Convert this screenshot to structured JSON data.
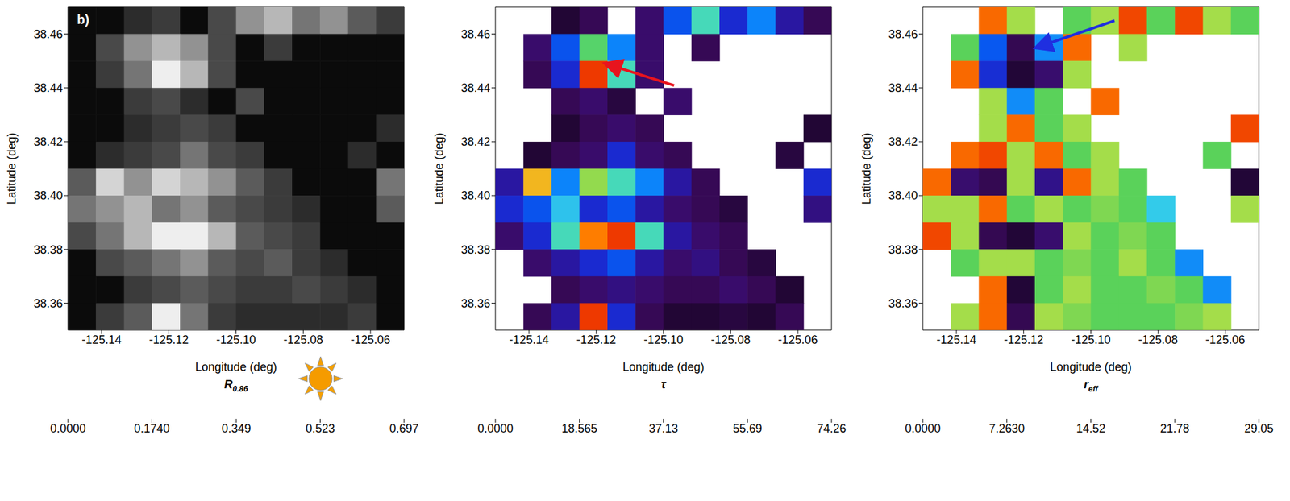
{
  "chart_data": [
    {
      "type": "heatmap",
      "panel_label": "b)",
      "x_label": "Longitude (deg)",
      "y_label": "Latitude (deg)",
      "color": "gray",
      "xlim": [
        -125.15,
        -125.05
      ],
      "xticks": [
        -125.14,
        -125.12,
        {
          "value": -125.1,
          "label": "-125.10"
        },
        -125.08,
        -125.06
      ],
      "ylim": [
        38.35,
        38.47
      ],
      "yticks": [
        38.36,
        38.38,
        {
          "value": 38.4,
          "label": "38.40"
        },
        38.42,
        38.44,
        38.46
      ],
      "cells": [
        [
          0.03,
          0.03,
          0.12,
          0.16,
          0.03,
          0.2,
          0.4,
          0.5,
          0.32,
          0.4,
          0.25,
          0.16
        ],
        [
          0.03,
          0.2,
          0.4,
          0.5,
          0.4,
          0.2,
          0.03,
          0.16,
          0.03,
          0.03,
          0.03,
          0.03
        ],
        [
          0.03,
          0.16,
          0.32,
          0.65,
          0.5,
          0.2,
          0.03,
          0.03,
          0.03,
          0.03,
          0.03,
          0.03
        ],
        [
          0.03,
          0.03,
          0.16,
          0.2,
          0.12,
          0.03,
          0.2,
          0.03,
          0.03,
          0.03,
          0.03,
          0.03
        ],
        [
          0.03,
          0.03,
          0.12,
          0.16,
          0.2,
          0.16,
          0.03,
          0.03,
          0.03,
          0.03,
          0.03,
          0.12
        ],
        [
          0.03,
          0.12,
          0.16,
          0.2,
          0.32,
          0.2,
          0.16,
          0.03,
          0.03,
          0.03,
          0.12,
          0.03
        ],
        [
          0.25,
          0.58,
          0.4,
          0.58,
          0.5,
          0.4,
          0.25,
          0.16,
          0.03,
          0.03,
          0.03,
          0.32
        ],
        [
          0.32,
          0.4,
          0.5,
          0.32,
          0.4,
          0.25,
          0.2,
          0.16,
          0.12,
          0.03,
          0.03,
          0.25
        ],
        [
          0.2,
          0.32,
          0.5,
          0.65,
          0.65,
          0.5,
          0.25,
          0.2,
          0.16,
          0.03,
          0.03,
          0.03
        ],
        [
          0.03,
          0.2,
          0.25,
          0.32,
          0.4,
          0.25,
          0.2,
          0.25,
          0.16,
          0.12,
          0.03,
          0.03
        ],
        [
          0.03,
          0.03,
          0.16,
          0.2,
          0.25,
          0.2,
          0.16,
          0.16,
          0.2,
          0.16,
          0.12,
          0.03
        ],
        [
          0.03,
          0.16,
          0.25,
          0.65,
          0.32,
          0.16,
          0.12,
          0.12,
          0.12,
          0.12,
          0.16,
          0.03
        ]
      ],
      "colorbar": {
        "label": "R",
        "label_subscript": "0.86",
        "range": [
          0,
          0.697
        ],
        "ticks": [
          {
            "value": 0,
            "label": "0.0000"
          },
          {
            "value": 0.174,
            "label": "0.1740"
          },
          0.349,
          0.523,
          0.697
        ]
      }
    },
    {
      "type": "heatmap",
      "x_label": "Longitude (deg)",
      "y_label": "Latitude (deg)",
      "color": "rainbow",
      "xlim": [
        -125.15,
        -125.05
      ],
      "xticks": [
        -125.14,
        -125.12,
        {
          "value": -125.1,
          "label": "-125.10"
        },
        -125.08,
        -125.06
      ],
      "ylim": [
        38.35,
        38.47
      ],
      "yticks": [
        38.36,
        38.38,
        {
          "value": 38.4,
          "label": "38.40"
        },
        38.42,
        38.44,
        38.46
      ],
      "cells": [
        [
          null,
          null,
          5,
          8,
          null,
          10,
          25,
          40,
          20,
          30,
          15,
          8
        ],
        [
          null,
          10,
          25,
          45,
          30,
          10,
          null,
          8,
          null,
          null,
          null,
          null
        ],
        [
          null,
          8,
          20,
          70,
          40,
          10,
          null,
          null,
          null,
          null,
          null,
          null
        ],
        [
          null,
          null,
          8,
          10,
          6,
          null,
          10,
          null,
          null,
          null,
          null,
          null
        ],
        [
          null,
          null,
          5,
          8,
          10,
          8,
          null,
          null,
          null,
          null,
          null,
          5
        ],
        [
          null,
          5,
          8,
          10,
          20,
          10,
          8,
          null,
          null,
          null,
          6,
          null
        ],
        [
          15,
          60,
          30,
          50,
          40,
          30,
          15,
          8,
          null,
          null,
          null,
          20
        ],
        [
          20,
          25,
          35,
          20,
          25,
          15,
          10,
          8,
          6,
          null,
          null,
          12
        ],
        [
          10,
          20,
          40,
          65,
          70,
          40,
          15,
          10,
          8,
          null,
          null,
          null
        ],
        [
          null,
          10,
          15,
          20,
          25,
          15,
          10,
          12,
          8,
          6,
          null,
          null
        ],
        [
          null,
          null,
          8,
          10,
          12,
          10,
          8,
          8,
          10,
          8,
          5,
          null
        ],
        [
          null,
          8,
          15,
          70,
          20,
          8,
          5,
          5,
          6,
          5,
          8,
          null
        ]
      ],
      "colorbar": {
        "label": "τ",
        "range": [
          0,
          74.26
        ],
        "ticks": [
          {
            "value": 0,
            "label": "0.0000"
          },
          18.565,
          37.13,
          55.69,
          74.26
        ]
      }
    },
    {
      "type": "heatmap",
      "x_label": "Longitude (deg)",
      "y_label": "Latitude (deg)",
      "color": "rainbow",
      "xlim": [
        -125.15,
        -125.05
      ],
      "xticks": [
        -125.14,
        -125.12,
        {
          "value": -125.1,
          "label": "-125.10"
        },
        -125.08,
        -125.06
      ],
      "ylim": [
        38.35,
        38.47
      ],
      "yticks": [
        38.36,
        38.38,
        {
          "value": 38.4,
          "label": "38.40"
        },
        38.42,
        38.44,
        38.46
      ],
      "cells": [
        [
          null,
          null,
          26,
          20,
          null,
          18,
          20,
          27,
          18,
          27,
          20,
          18
        ],
        [
          null,
          18,
          10,
          3,
          12,
          26,
          null,
          20,
          null,
          null,
          null,
          null
        ],
        [
          null,
          26,
          8,
          2,
          4,
          20,
          null,
          null,
          null,
          null,
          null,
          null
        ],
        [
          null,
          null,
          20,
          12,
          18,
          null,
          26,
          null,
          null,
          null,
          null,
          null
        ],
        [
          null,
          null,
          20,
          26,
          18,
          20,
          null,
          null,
          null,
          null,
          null,
          27
        ],
        [
          null,
          26,
          27,
          20,
          26,
          18,
          20,
          null,
          null,
          null,
          18,
          null
        ],
        [
          26,
          4,
          3,
          20,
          5,
          26,
          20,
          18,
          null,
          null,
          null,
          2
        ],
        [
          20,
          20,
          26,
          18,
          20,
          18,
          19,
          18,
          14,
          null,
          null,
          20
        ],
        [
          27,
          20,
          3,
          2,
          4,
          20,
          18,
          19,
          18,
          null,
          null,
          null
        ],
        [
          null,
          18,
          20,
          20,
          18,
          19,
          18,
          20,
          18,
          12,
          null,
          null
        ],
        [
          null,
          null,
          26,
          2,
          18,
          20,
          18,
          18,
          19,
          18,
          12,
          null
        ],
        [
          null,
          20,
          26,
          3,
          20,
          19,
          18,
          18,
          18,
          19,
          20,
          null
        ]
      ],
      "colorbar": {
        "label": "r",
        "label_subscript": "eff",
        "range": [
          0,
          29.05
        ],
        "ticks": [
          {
            "value": 0,
            "label": "0.0000"
          },
          {
            "value": 7.263,
            "label": "7.2630"
          },
          14.52,
          21.78,
          29.05
        ]
      }
    }
  ]
}
